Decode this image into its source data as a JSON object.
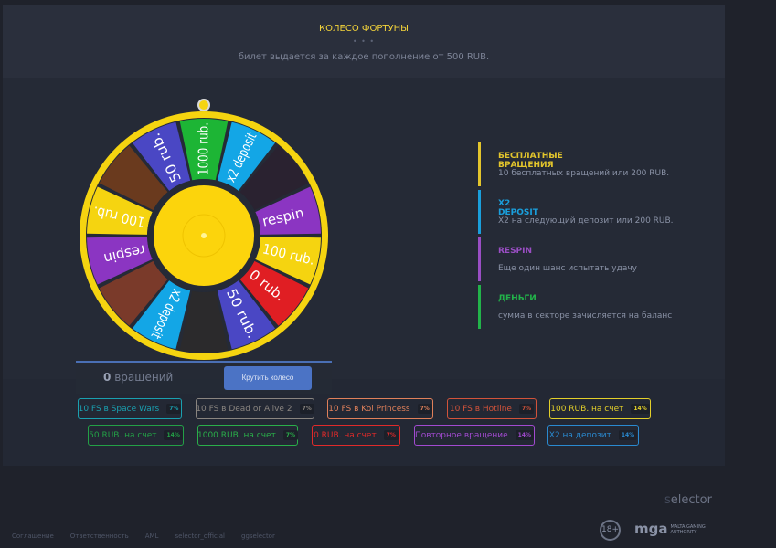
{
  "header": {
    "title": "КОЛЕСО ФОРТУНЫ",
    "dots": "• • •",
    "subtitle": "билет выдается за каждое пополнение от 500 RUB."
  },
  "wheel": {
    "segments": [
      {
        "label": "1000 rub.",
        "color": "#1db535"
      },
      {
        "label": "x2 deposit",
        "color": "#13a6e6"
      },
      {
        "label": "",
        "color": "#2a2230",
        "image": "space-wars-image"
      },
      {
        "label": "respin",
        "color": "#8b35c2"
      },
      {
        "label": "100 rub.",
        "color": "#f5d410"
      },
      {
        "label": "0 rub.",
        "color": "#e01e23"
      },
      {
        "label": "50 rub.",
        "color": "#4a47c4"
      },
      {
        "label": "",
        "color": "#2b2a2c",
        "image": "hotline-image"
      },
      {
        "label": "x2 deposit",
        "color": "#13a6e6"
      },
      {
        "label": "",
        "color": "#7a3a2a",
        "image": "koi-princess-image"
      },
      {
        "label": "respin",
        "color": "#8b35c2"
      },
      {
        "label": "100 rub.",
        "color": "#f5d410"
      },
      {
        "label": "",
        "color": "#6a3a1e",
        "image": "dead-or-alive-image"
      },
      {
        "label": "50 rub.",
        "color": "#4a47c4"
      }
    ],
    "rim_color": "#f5d410",
    "hub_color": "#fcd40c"
  },
  "spin_panel": {
    "count": "0",
    "count_label": "вращений",
    "button": "Крутить колесо"
  },
  "legend": [
    {
      "title": "БЕСПЛАТНЫЕ ВРАЩЕНИЯ",
      "desc": "10 бесплатных вращений или 200 RUB.",
      "color": "#e3c52c"
    },
    {
      "title": "X2 DEPOSIT",
      "desc": "X2 на следующий депозит или 200 RUB.",
      "color": "#1a9fdc"
    },
    {
      "title": "RESPIN",
      "desc": "Еще один шанс испытать удачу",
      "color": "#9a4ec4"
    },
    {
      "title": "ДЕНЬГИ",
      "desc": "сумма в секторе зачисляется на баланс",
      "color": "#22b34a"
    }
  ],
  "prizes": [
    {
      "label": "10 FS в Space Wars",
      "pct": "7%",
      "color": "#1aa0b0"
    },
    {
      "label": "10 FS в Dead or Alive 2",
      "pct": "7%",
      "color": "#8a8580"
    },
    {
      "label": "10 FS в Koi Princess",
      "pct": "7%",
      "color": "#e0805a"
    },
    {
      "label": "10 FS в Hotline",
      "pct": "7%",
      "color": "#d2533a"
    },
    {
      "label": "100 RUB. на счет",
      "pct": "14%",
      "color": "#e3cf2a"
    },
    {
      "label": "50 RUB. на счет",
      "pct": "14%",
      "color": "#23a046"
    },
    {
      "label": "1000 RUB. на счет",
      "pct": "7%",
      "color": "#2aae4a"
    },
    {
      "label": "0 RUB. на счет",
      "pct": "7%",
      "color": "#e02a2a"
    },
    {
      "label": "Повторное вращение",
      "pct": "14%",
      "color": "#a24ad0"
    },
    {
      "label": "X2 на депозит",
      "pct": "14%",
      "color": "#2a8ad0"
    }
  ],
  "footer": {
    "links": [
      "Соглашение",
      "Ответственность",
      "AML",
      "selector_official",
      "ggselector"
    ],
    "brand_s": "s",
    "brand_rest": "elector",
    "age": "18+",
    "mga": "mga",
    "mga_sub": "MALTA GAMING AUTHORITY"
  }
}
